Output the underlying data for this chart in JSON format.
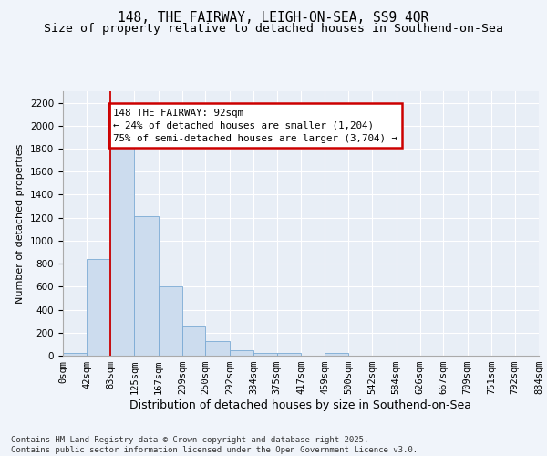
{
  "title_line1": "148, THE FAIRWAY, LEIGH-ON-SEA, SS9 4QR",
  "title_line2": "Size of property relative to detached houses in Southend-on-Sea",
  "xlabel": "Distribution of detached houses by size in Southend-on-Sea",
  "ylabel": "Number of detached properties",
  "bar_color": "#ccdcee",
  "bar_edge_color": "#7aaad4",
  "background_color": "#f0f4fa",
  "plot_bg_color": "#e8eef6",
  "grid_color": "#ffffff",
  "annotation_text": "148 THE FAIRWAY: 92sqm\n← 24% of detached houses are smaller (1,204)\n75% of semi-detached houses are larger (3,704) →",
  "annotation_box_edgecolor": "#cc0000",
  "property_line_x": 83,
  "property_line_color": "#cc0000",
  "bin_edges": [
    0,
    42,
    83,
    125,
    167,
    209,
    250,
    292,
    334,
    375,
    417,
    459,
    500,
    542,
    584,
    626,
    667,
    709,
    751,
    792,
    834
  ],
  "bin_labels": [
    "0sqm",
    "42sqm",
    "83sqm",
    "125sqm",
    "167sqm",
    "209sqm",
    "250sqm",
    "292sqm",
    "334sqm",
    "375sqm",
    "417sqm",
    "459sqm",
    "500sqm",
    "542sqm",
    "584sqm",
    "626sqm",
    "667sqm",
    "709sqm",
    "751sqm",
    "792sqm",
    "834sqm"
  ],
  "counts": [
    20,
    840,
    1820,
    1210,
    600,
    250,
    125,
    50,
    25,
    20,
    0,
    20,
    0,
    0,
    0,
    0,
    0,
    0,
    0,
    0
  ],
  "ylim": [
    0,
    2300
  ],
  "yticks": [
    0,
    200,
    400,
    600,
    800,
    1000,
    1200,
    1400,
    1600,
    1800,
    2000,
    2200
  ],
  "footer_text": "Contains HM Land Registry data © Crown copyright and database right 2025.\nContains public sector information licensed under the Open Government Licence v3.0.",
  "title_fontsize": 10.5,
  "subtitle_fontsize": 9.5,
  "xlabel_fontsize": 9,
  "ylabel_fontsize": 8,
  "tick_fontsize": 7.5,
  "footer_fontsize": 6.5,
  "annot_fontsize": 7.8
}
